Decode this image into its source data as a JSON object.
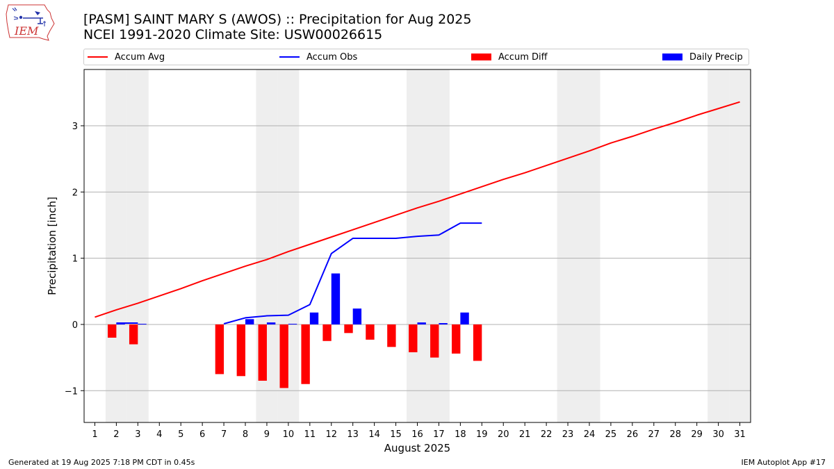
{
  "logo": {
    "text": "IEM"
  },
  "title_line1": "[PASM] SAINT MARY S (AWOS) :: Precipitation for Aug 2025",
  "title_line2": "NCEI 1991-2020 Climate Site: USW00026615",
  "footer_left": "Generated at 19 Aug 2025 7:18 PM CDT in 0.45s",
  "footer_right": "IEM Autoplot App #17",
  "colors": {
    "avg": "#ff0000",
    "obs": "#0000ff",
    "diff": "#ff0000",
    "daily": "#0000ff",
    "weekend": "#eeeeee",
    "grid": "#b0b0b0"
  },
  "chart_data": {
    "type": "bar",
    "xlabel": "August 2025",
    "ylabel": "Precipitation [inch]",
    "xlim": [
      0.5,
      31.5
    ],
    "ylim": [
      -1.48,
      3.85
    ],
    "yticks": [
      -1,
      0,
      1,
      2,
      3
    ],
    "ytick_labels": [
      "−1",
      "0",
      "1",
      "2",
      "3"
    ],
    "xticks": [
      1,
      2,
      3,
      4,
      5,
      6,
      7,
      8,
      9,
      10,
      11,
      12,
      13,
      14,
      15,
      16,
      17,
      18,
      19,
      20,
      21,
      22,
      23,
      24,
      25,
      26,
      27,
      28,
      29,
      30,
      31
    ],
    "grid": "horizontal",
    "legend_position": "top",
    "weekend_days": [
      2,
      3,
      9,
      10,
      16,
      17,
      23,
      24,
      30,
      31
    ],
    "series": [
      {
        "name": "Accum Avg",
        "kind": "line",
        "x": [
          1,
          2,
          3,
          4,
          5,
          6,
          7,
          8,
          9,
          10,
          11,
          12,
          13,
          14,
          15,
          16,
          17,
          18,
          19,
          20,
          21,
          22,
          23,
          24,
          25,
          26,
          27,
          28,
          29,
          30,
          31
        ],
        "values": [
          0.11,
          0.22,
          0.32,
          0.43,
          0.54,
          0.66,
          0.77,
          0.88,
          0.98,
          1.1,
          1.21,
          1.32,
          1.43,
          1.54,
          1.65,
          1.76,
          1.86,
          1.97,
          2.08,
          2.19,
          2.29,
          2.4,
          2.51,
          2.62,
          2.74,
          2.84,
          2.95,
          3.05,
          3.16,
          3.26,
          3.36
        ]
      },
      {
        "name": "Accum Obs",
        "kind": "line",
        "segments": [
          {
            "x": [
              2,
              3
            ],
            "values": [
              0.02,
              0.02
            ]
          },
          {
            "x": [
              7,
              8,
              9,
              10,
              11,
              12,
              13,
              14,
              15,
              16,
              17,
              18,
              19
            ],
            "values": [
              0.01,
              0.1,
              0.13,
              0.14,
              0.3,
              1.07,
              1.3,
              1.3,
              1.3,
              1.33,
              1.35,
              1.53,
              1.53
            ]
          }
        ]
      },
      {
        "name": "Accum Diff",
        "kind": "bar",
        "offset": -0.2,
        "x": [
          2,
          3,
          7,
          8,
          9,
          10,
          11,
          12,
          13,
          14,
          15,
          16,
          17,
          18,
          19
        ],
        "values": [
          -0.2,
          -0.3,
          -0.75,
          -0.78,
          -0.85,
          -0.96,
          -0.9,
          -0.25,
          -0.13,
          -0.23,
          -0.34,
          -0.42,
          -0.5,
          -0.44,
          -0.55
        ]
      },
      {
        "name": "Daily Precip",
        "kind": "bar",
        "offset": 0.2,
        "x": [
          2,
          3,
          8,
          9,
          10,
          11,
          12,
          13,
          16,
          17,
          18
        ],
        "values": [
          0.02,
          0.01,
          0.08,
          0.03,
          0.01,
          0.18,
          0.77,
          0.24,
          0.03,
          0.02,
          0.18
        ]
      }
    ]
  }
}
